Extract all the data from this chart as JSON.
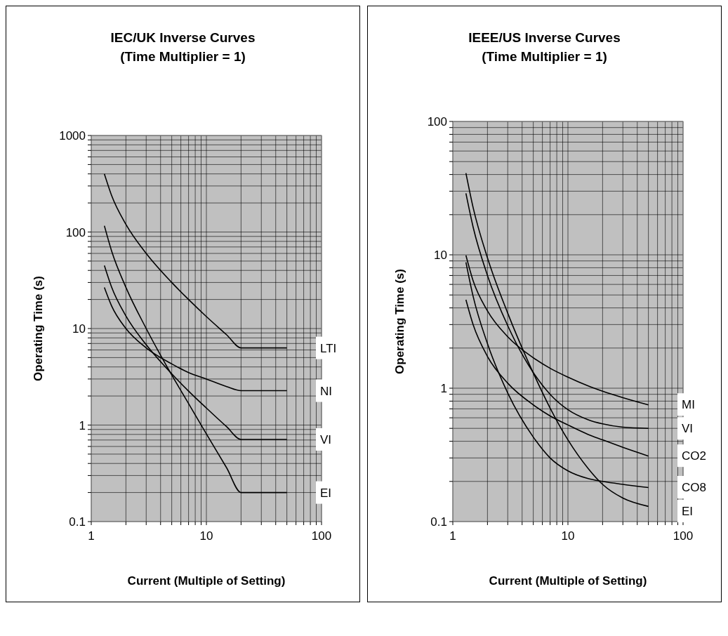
{
  "chart_data": [
    {
      "type": "line",
      "title": "IEC/UK Inverse Curves\n(Time Multiplier = 1)",
      "xlabel": "Current (Multiple of Setting)",
      "ylabel": "Operating Time (s)",
      "log": "xy",
      "grid": true,
      "xlim": [
        1,
        100
      ],
      "ylim": [
        0.1,
        1000
      ],
      "xticks": [
        1,
        {
          "value": 2,
          "label": null
        },
        {
          "value": 3,
          "label": null
        },
        {
          "value": 4,
          "label": null
        },
        {
          "value": 5,
          "label": null
        },
        {
          "value": 6,
          "label": null
        },
        {
          "value": 7,
          "label": null
        },
        {
          "value": 8,
          "label": null
        },
        {
          "value": 9,
          "label": null
        },
        10,
        {
          "value": 20,
          "label": null
        },
        {
          "value": 30,
          "label": null
        },
        {
          "value": 40,
          "label": null
        },
        {
          "value": 50,
          "label": null
        },
        {
          "value": 60,
          "label": null
        },
        {
          "value": 70,
          "label": null
        },
        {
          "value": 80,
          "label": null
        },
        {
          "value": 90,
          "label": null
        },
        100
      ],
      "yticks": [
        0.1,
        {
          "value": 0.2,
          "label": null
        },
        {
          "value": 0.3,
          "label": null
        },
        {
          "value": 0.4,
          "label": null
        },
        {
          "value": 0.5,
          "label": null
        },
        {
          "value": 0.6,
          "label": null
        },
        {
          "value": 0.7,
          "label": null
        },
        {
          "value": 0.8,
          "label": null
        },
        {
          "value": 0.9,
          "label": null
        },
        1,
        {
          "value": 2,
          "label": null
        },
        {
          "value": 3,
          "label": null
        },
        {
          "value": 4,
          "label": null
        },
        {
          "value": 5,
          "label": null
        },
        {
          "value": 6,
          "label": null
        },
        {
          "value": 7,
          "label": null
        },
        {
          "value": 8,
          "label": null
        },
        {
          "value": 9,
          "label": null
        },
        10,
        {
          "value": 20,
          "label": null
        },
        {
          "value": 30,
          "label": null
        },
        {
          "value": 40,
          "label": null
        },
        {
          "value": 50,
          "label": null
        },
        {
          "value": 60,
          "label": null
        },
        {
          "value": 70,
          "label": null
        },
        {
          "value": 80,
          "label": null
        },
        {
          "value": 90,
          "label": null
        },
        100,
        {
          "value": 200,
          "label": null
        },
        {
          "value": 300,
          "label": null
        },
        {
          "value": 400,
          "label": null
        },
        {
          "value": 500,
          "label": null
        },
        {
          "value": 600,
          "label": null
        },
        {
          "value": 700,
          "label": null
        },
        {
          "value": 800,
          "label": null
        },
        {
          "value": 900,
          "label": null
        },
        1000
      ],
      "x": [
        1.3,
        1.5,
        2,
        3,
        5,
        7,
        10,
        15,
        20,
        30,
        50
      ],
      "series": [
        {
          "name": "LTI",
          "color": "#000000",
          "values": [
            400,
            240,
            120,
            60,
            30,
            20,
            13.3,
            8.6,
            6.3,
            6.3,
            6.3
          ]
        },
        {
          "name": "NI",
          "color": "#000000",
          "values": [
            26.6,
            17.2,
            10,
            6.3,
            4.3,
            3.5,
            3,
            2.5,
            2.27,
            2.27,
            2.27
          ]
        },
        {
          "name": "VI",
          "color": "#000000",
          "values": [
            45,
            27,
            13.5,
            6.8,
            3.4,
            2.25,
            1.5,
            0.96,
            0.71,
            0.71,
            0.71
          ]
        },
        {
          "name": "EI",
          "color": "#000000",
          "values": [
            116,
            64,
            26.7,
            10,
            3.3,
            1.67,
            0.81,
            0.36,
            0.2,
            0.2,
            0.2
          ]
        }
      ]
    },
    {
      "type": "line",
      "title": "IEEE/US Inverse Curves\n(Time Multiplier = 1)",
      "xlabel": "Current (Multiple of Setting)",
      "ylabel": "Operating Time (s)",
      "log": "xy",
      "grid": true,
      "xlim": [
        1,
        100
      ],
      "ylim": [
        0.1,
        100
      ],
      "xticks": [
        1,
        {
          "value": 2,
          "label": null
        },
        {
          "value": 3,
          "label": null
        },
        {
          "value": 4,
          "label": null
        },
        {
          "value": 5,
          "label": null
        },
        {
          "value": 6,
          "label": null
        },
        {
          "value": 7,
          "label": null
        },
        {
          "value": 8,
          "label": null
        },
        {
          "value": 9,
          "label": null
        },
        10,
        {
          "value": 20,
          "label": null
        },
        {
          "value": 30,
          "label": null
        },
        {
          "value": 40,
          "label": null
        },
        {
          "value": 50,
          "label": null
        },
        {
          "value": 60,
          "label": null
        },
        {
          "value": 70,
          "label": null
        },
        {
          "value": 80,
          "label": null
        },
        {
          "value": 90,
          "label": null
        },
        100
      ],
      "yticks": [
        0.1,
        {
          "value": 0.2,
          "label": null
        },
        {
          "value": 0.3,
          "label": null
        },
        {
          "value": 0.4,
          "label": null
        },
        {
          "value": 0.5,
          "label": null
        },
        {
          "value": 0.6,
          "label": null
        },
        {
          "value": 0.7,
          "label": null
        },
        {
          "value": 0.8,
          "label": null
        },
        {
          "value": 0.9,
          "label": null
        },
        1,
        {
          "value": 2,
          "label": null
        },
        {
          "value": 3,
          "label": null
        },
        {
          "value": 4,
          "label": null
        },
        {
          "value": 5,
          "label": null
        },
        {
          "value": 6,
          "label": null
        },
        {
          "value": 7,
          "label": null
        },
        {
          "value": 8,
          "label": null
        },
        {
          "value": 9,
          "label": null
        },
        10,
        {
          "value": 20,
          "label": null
        },
        {
          "value": 30,
          "label": null
        },
        {
          "value": 40,
          "label": null
        },
        {
          "value": 50,
          "label": null
        },
        {
          "value": 60,
          "label": null
        },
        {
          "value": 70,
          "label": null
        },
        {
          "value": 80,
          "label": null
        },
        {
          "value": 90,
          "label": null
        },
        100
      ],
      "x": [
        1.3,
        1.5,
        2,
        3,
        5,
        7,
        10,
        15,
        20,
        30,
        50
      ],
      "series": [
        {
          "name": "MI",
          "color": "#000000",
          "values": [
            9.9,
            6.4,
            3.8,
            2.43,
            1.69,
            1.41,
            1.21,
            1.04,
            0.95,
            0.85,
            0.75
          ]
        },
        {
          "name": "VI",
          "color": "#000000",
          "values": [
            28.9,
            16.2,
            7,
            2.94,
            1.31,
            0.9,
            0.69,
            0.58,
            0.54,
            0.51,
            0.5
          ]
        },
        {
          "name": "CO2",
          "color": "#000000",
          "values": [
            4.6,
            3,
            1.73,
            1.09,
            0.75,
            0.62,
            0.53,
            0.45,
            0.41,
            0.36,
            0.31
          ]
        },
        {
          "name": "CO8",
          "color": "#000000",
          "values": [
            8.8,
            4.9,
            2.16,
            0.92,
            0.43,
            0.3,
            0.24,
            0.21,
            0.2,
            0.19,
            0.18
          ]
        },
        {
          "name": "EI",
          "color": "#000000",
          "values": [
            41,
            22.7,
            9.5,
            3.65,
            1.3,
            0.71,
            0.41,
            0.25,
            0.19,
            0.15,
            0.13
          ]
        }
      ]
    }
  ]
}
